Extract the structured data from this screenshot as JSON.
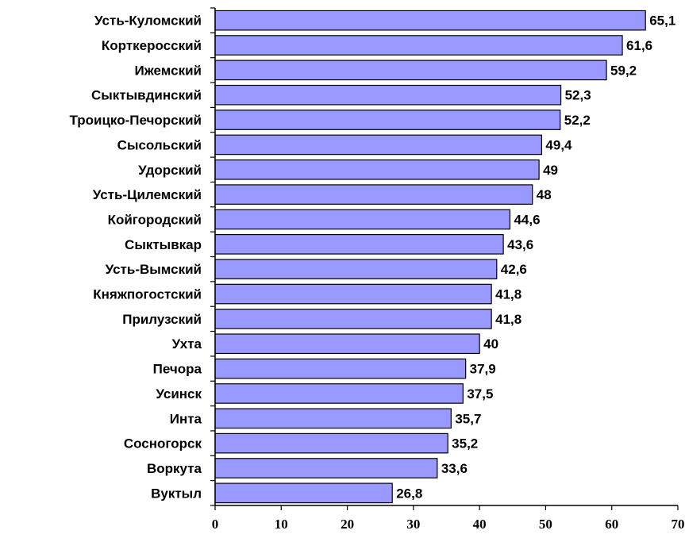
{
  "chart_data": {
    "type": "bar",
    "orientation": "horizontal",
    "categories": [
      "Усть-Куломский",
      "Корткеросский",
      "Ижемский",
      "Сыктывдинский",
      "Троицко-Печорский",
      "Сысольский",
      "Удорский",
      "Усть-Цилемский",
      "Койгородский",
      "Сыктывкар",
      "Усть-Вымский",
      "Княжпогостский",
      "Прилузский",
      "Ухта",
      "Печора",
      "Усинск",
      "Инта",
      "Сосногорск",
      "Воркута",
      "Вуктыл"
    ],
    "values": [
      65.1,
      61.6,
      59.2,
      52.3,
      52.2,
      49.4,
      49,
      48,
      44.6,
      43.6,
      42.6,
      41.8,
      41.8,
      40,
      37.9,
      37.5,
      35.7,
      35.2,
      33.6,
      26.8
    ],
    "value_labels": [
      "65,1",
      "61,6",
      "59,2",
      "52,3",
      "52,2",
      "49,4",
      "49",
      "48",
      "44,6",
      "43,6",
      "42,6",
      "41,8",
      "41,8",
      "40",
      "37,9",
      "37,5",
      "35,7",
      "35,2",
      "33,6",
      "26,8"
    ],
    "xlim": [
      0,
      70
    ],
    "x_ticks": [
      "0",
      "10",
      "20",
      "30",
      "40",
      "50",
      "60",
      "70"
    ],
    "title": "",
    "xlabel": "",
    "ylabel": "",
    "grid": false,
    "bar_color": "#9999ff",
    "bar_border_color": "#000000"
  }
}
